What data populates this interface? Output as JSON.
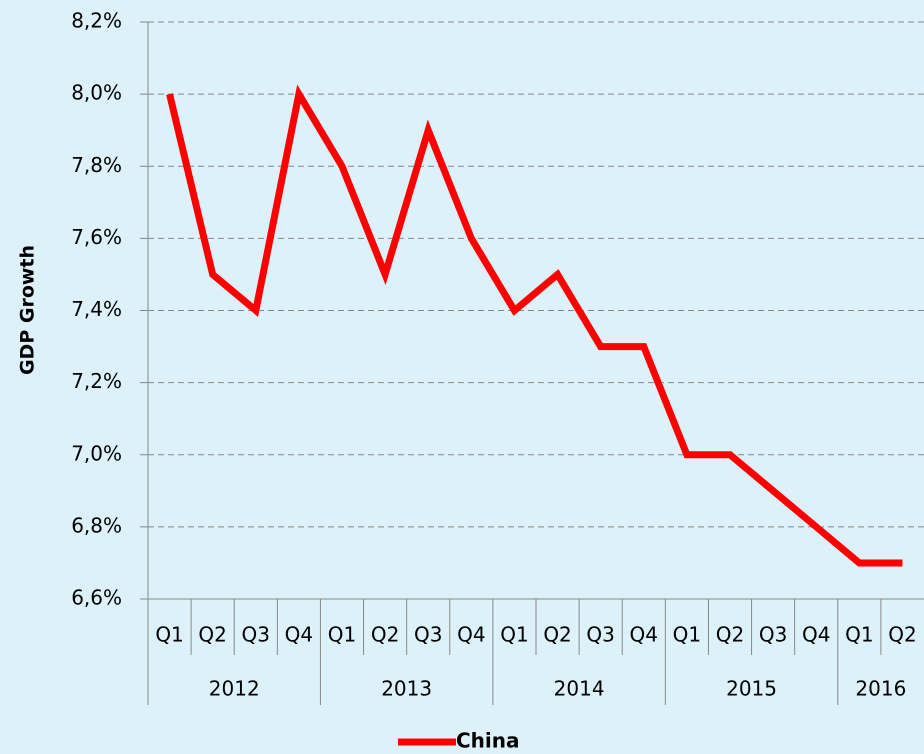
{
  "chart_data": {
    "type": "line",
    "y_axis_label": "GDP Growth",
    "categories": [
      "Q1",
      "Q2",
      "Q3",
      "Q4",
      "Q1",
      "Q2",
      "Q3",
      "Q4",
      "Q1",
      "Q2",
      "Q3",
      "Q4",
      "Q1",
      "Q2",
      "Q3",
      "Q4",
      "Q1",
      "Q2"
    ],
    "category_groups": [
      "2012",
      "2013",
      "2014",
      "2015",
      "2016"
    ],
    "series": [
      {
        "name": "China",
        "color": "#ff0000",
        "values": [
          8.0,
          7.5,
          7.4,
          8.0,
          7.8,
          7.5,
          7.9,
          7.6,
          7.4,
          7.5,
          7.3,
          7.3,
          7.0,
          7.0,
          6.9,
          6.8,
          6.7,
          6.7
        ]
      }
    ],
    "ylim": [
      6.6,
      8.2
    ],
    "yticks": [
      {
        "value": 6.6,
        "label": "6,6%"
      },
      {
        "value": 6.8,
        "label": "6,8%"
      },
      {
        "value": 7.0,
        "label": "7,0%"
      },
      {
        "value": 7.2,
        "label": "7,2%"
      },
      {
        "value": 7.4,
        "label": "7,4%"
      },
      {
        "value": 7.6,
        "label": "7,6%"
      },
      {
        "value": 7.8,
        "label": "7,8%"
      },
      {
        "value": 8.0,
        "label": "8,0%"
      },
      {
        "value": 8.2,
        "label": "8,2%"
      }
    ],
    "grid": true,
    "legend": "bottom"
  }
}
